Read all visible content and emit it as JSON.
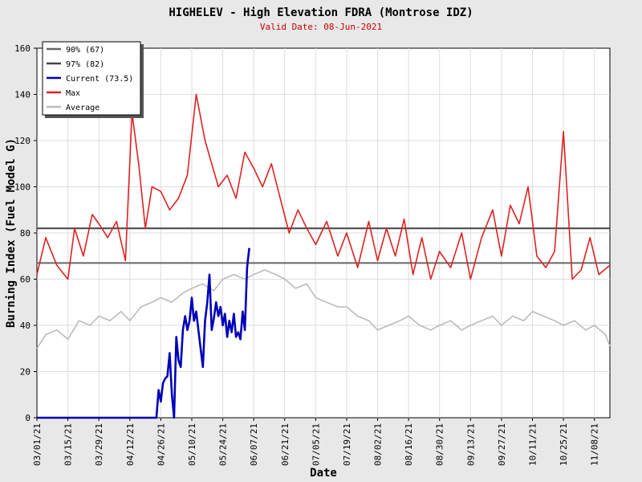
{
  "chart_data": {
    "type": "line",
    "title": "HIGHELEV - High Elevation FDRA (Montrose IDZ)",
    "subtitle": "Valid Date: 08-Jun-2021",
    "xlabel": "Date",
    "ylabel": "Burning Index (Fuel Model G)",
    "ylim": [
      0,
      160
    ],
    "y_ticks": [
      0,
      20,
      40,
      60,
      80,
      100,
      120,
      140,
      160
    ],
    "x_start_date": "2021-03-01",
    "x_end_date": "2021-11-15",
    "x_ticks": [
      "03/01/21",
      "03/15/21",
      "03/29/21",
      "04/12/21",
      "04/26/21",
      "05/10/21",
      "05/24/21",
      "06/07/21",
      "06/21/21",
      "07/05/21",
      "07/19/21",
      "08/02/21",
      "08/16/21",
      "08/30/21",
      "09/13/21",
      "09/27/21",
      "10/11/21",
      "10/25/21",
      "11/08/21"
    ],
    "grid": true,
    "legend_position": "top-left",
    "reference_lines": [
      {
        "name": "90% (67)",
        "value": 67,
        "color": "#666666"
      },
      {
        "name": "97% (82)",
        "value": 82,
        "color": "#444444"
      }
    ],
    "series": [
      {
        "name": "Current (73.5)",
        "color": "#0000bb",
        "x": [
          "2021-03-01",
          "2021-04-24",
          "2021-04-25",
          "2021-04-26",
          "2021-04-27",
          "2021-04-28",
          "2021-04-29",
          "2021-04-30",
          "2021-05-01",
          "2021-05-02",
          "2021-05-03",
          "2021-05-04",
          "2021-05-05",
          "2021-05-06",
          "2021-05-07",
          "2021-05-08",
          "2021-05-09",
          "2021-05-10",
          "2021-05-11",
          "2021-05-12",
          "2021-05-13",
          "2021-05-14",
          "2021-05-15",
          "2021-05-16",
          "2021-05-17",
          "2021-05-18",
          "2021-05-19",
          "2021-05-20",
          "2021-05-21",
          "2021-05-22",
          "2021-05-23",
          "2021-05-24",
          "2021-05-25",
          "2021-05-26",
          "2021-05-27",
          "2021-05-28",
          "2021-05-29",
          "2021-05-30",
          "2021-05-31",
          "2021-06-01",
          "2021-06-02",
          "2021-06-03",
          "2021-06-04",
          "2021-06-05",
          "2021-06-06",
          "2021-06-07",
          "2021-06-08"
        ],
        "values": [
          0,
          0,
          12,
          7,
          15,
          17,
          18,
          28,
          10,
          0,
          35,
          25,
          22,
          38,
          44,
          38,
          42,
          52,
          42,
          46,
          38,
          30,
          22,
          42,
          50,
          62,
          38,
          43,
          50,
          44,
          48,
          40,
          45,
          35,
          42,
          37,
          45,
          35,
          37,
          34,
          46,
          38,
          65,
          73.5,
          null,
          null,
          null
        ]
      },
      {
        "name": "Max",
        "color": "#dd2222",
        "x": [
          "2021-03-01",
          "2021-03-05",
          "2021-03-10",
          "2021-03-15",
          "2021-03-18",
          "2021-03-22",
          "2021-03-26",
          "2021-03-29",
          "2021-04-02",
          "2021-04-06",
          "2021-04-10",
          "2021-04-13",
          "2021-04-16",
          "2021-04-19",
          "2021-04-22",
          "2021-04-26",
          "2021-04-30",
          "2021-05-04",
          "2021-05-08",
          "2021-05-12",
          "2021-05-16",
          "2021-05-19",
          "2021-05-22",
          "2021-05-26",
          "2021-05-30",
          "2021-06-03",
          "2021-06-07",
          "2021-06-11",
          "2021-06-15",
          "2021-06-19",
          "2021-06-23",
          "2021-06-27",
          "2021-07-01",
          "2021-07-05",
          "2021-07-10",
          "2021-07-15",
          "2021-07-19",
          "2021-07-24",
          "2021-07-29",
          "2021-08-02",
          "2021-08-06",
          "2021-08-10",
          "2021-08-14",
          "2021-08-18",
          "2021-08-22",
          "2021-08-26",
          "2021-08-30",
          "2021-09-04",
          "2021-09-09",
          "2021-09-13",
          "2021-09-18",
          "2021-09-23",
          "2021-09-27",
          "2021-10-01",
          "2021-10-05",
          "2021-10-09",
          "2021-10-13",
          "2021-10-17",
          "2021-10-21",
          "2021-10-25",
          "2021-10-29",
          "2021-11-02",
          "2021-11-06",
          "2021-11-10",
          "2021-11-15"
        ],
        "values": [
          62,
          78,
          66,
          60,
          82,
          70,
          88,
          84,
          78,
          85,
          68,
          132,
          110,
          82,
          100,
          98,
          90,
          95,
          105,
          140,
          120,
          110,
          100,
          105,
          95,
          115,
          108,
          100,
          110,
          95,
          80,
          90,
          82,
          75,
          85,
          70,
          80,
          65,
          85,
          68,
          82,
          70,
          86,
          62,
          78,
          60,
          72,
          65,
          80,
          60,
          78,
          90,
          70,
          92,
          84,
          100,
          70,
          65,
          72,
          124,
          60,
          64,
          78,
          62,
          66
        ]
      },
      {
        "name": "Average",
        "color": "#bbbbbb",
        "x": [
          "2021-03-01",
          "2021-03-05",
          "2021-03-10",
          "2021-03-15",
          "2021-03-20",
          "2021-03-25",
          "2021-03-29",
          "2021-04-03",
          "2021-04-08",
          "2021-04-12",
          "2021-04-17",
          "2021-04-22",
          "2021-04-26",
          "2021-05-01",
          "2021-05-06",
          "2021-05-10",
          "2021-05-15",
          "2021-05-20",
          "2021-05-24",
          "2021-05-29",
          "2021-06-03",
          "2021-06-07",
          "2021-06-12",
          "2021-06-17",
          "2021-06-21",
          "2021-06-26",
          "2021-07-01",
          "2021-07-05",
          "2021-07-10",
          "2021-07-15",
          "2021-07-19",
          "2021-07-24",
          "2021-07-29",
          "2021-08-02",
          "2021-08-07",
          "2021-08-12",
          "2021-08-16",
          "2021-08-21",
          "2021-08-26",
          "2021-08-30",
          "2021-09-04",
          "2021-09-09",
          "2021-09-13",
          "2021-09-18",
          "2021-09-23",
          "2021-09-27",
          "2021-10-02",
          "2021-10-07",
          "2021-10-11",
          "2021-10-16",
          "2021-10-21",
          "2021-10-25",
          "2021-10-30",
          "2021-11-04",
          "2021-11-08",
          "2021-11-13",
          "2021-11-15"
        ],
        "values": [
          30,
          36,
          38,
          34,
          42,
          40,
          44,
          42,
          46,
          42,
          48,
          50,
          52,
          50,
          54,
          56,
          58,
          55,
          60,
          62,
          60,
          62,
          64,
          62,
          60,
          56,
          58,
          52,
          50,
          48,
          48,
          44,
          42,
          38,
          40,
          42,
          44,
          40,
          38,
          40,
          42,
          38,
          40,
          42,
          44,
          40,
          44,
          42,
          46,
          44,
          42,
          40,
          42,
          38,
          40,
          36,
          31
        ]
      }
    ]
  }
}
